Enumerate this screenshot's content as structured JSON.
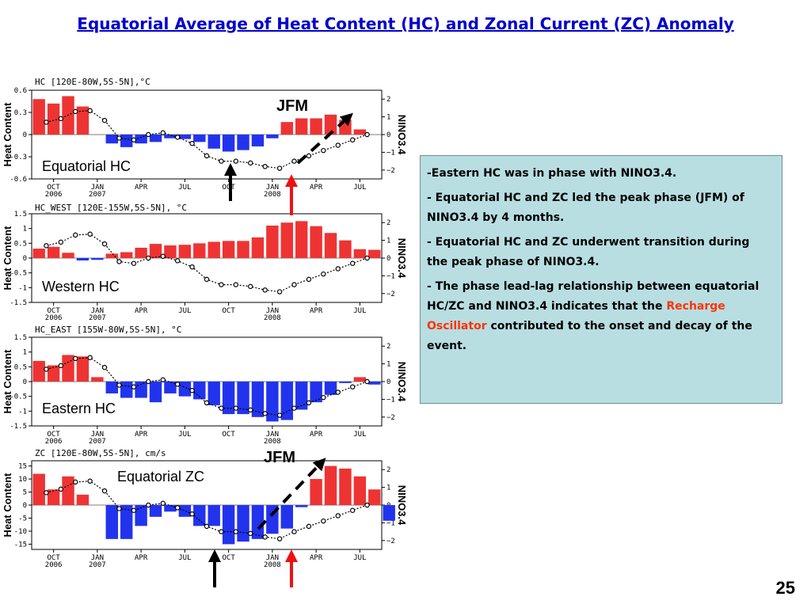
{
  "slide": {
    "title": "Equatorial  Average of Heat Content (HC) and Zonal Current (ZC) Anomaly",
    "page_number": "25"
  },
  "annotations": {
    "jfm_label": "JFM",
    "arrow_colors": {
      "up_arrow": "#000000",
      "peak_arrow": "#ee1111"
    }
  },
  "info_box": {
    "bullets": [
      "-Eastern HC was in phase with NINO3.4.",
      "- Equatorial HC and ZC led the peak phase (JFM) of NINO3.4 by 4 months.",
      "- Equatorial HC and ZC underwent  transition during the peak phase of NINO3.4."
    ],
    "last_bullet": {
      "before": "- The phase lead-lag relationship between equatorial HC/ZC and NINO3.4 indicates that the ",
      "highlight": "Recharge Oscillator",
      "after": " contributed to the onset and decay of the event."
    },
    "background": "#b8dee2",
    "highlight_color": "#ff3300"
  },
  "chart_data": [
    {
      "type": "bar",
      "title": "HC [120E-80W,5S-5N],°C",
      "label": "Equatorial HC",
      "ylabel": "Heat Content",
      "y2label": "NINO3.4",
      "ylim": [
        -0.6,
        0.6
      ],
      "yticks": [
        -0.6,
        -0.3,
        0,
        0.3,
        0.6
      ],
      "y2lim": [
        -2.5,
        2.5
      ],
      "y2ticks": [
        -2,
        -1,
        0,
        1,
        2
      ],
      "x_ticks": [
        "OCT\n2006",
        "JAN\n2007",
        "APR",
        "JUL",
        "OCT",
        "JAN\n2008",
        "APR",
        "JUL"
      ],
      "bars": [
        0.48,
        0.42,
        0.52,
        0.38,
        0.0,
        -0.12,
        -0.17,
        -0.12,
        -0.1,
        -0.05,
        -0.06,
        -0.1,
        -0.19,
        -0.23,
        -0.21,
        -0.16,
        -0.05,
        0.17,
        0.22,
        0.22,
        0.27,
        0.2,
        0.07
      ],
      "line": [
        0.7,
        0.9,
        1.3,
        1.35,
        0.8,
        -0.2,
        -0.3,
        0.0,
        0.1,
        -0.15,
        -0.5,
        -1.2,
        -1.5,
        -1.5,
        -1.6,
        -1.8,
        -1.9,
        -1.5,
        -1.2,
        -0.9,
        -0.6,
        -0.3,
        0.0
      ],
      "colors": {
        "positive": "#ee3333",
        "negative": "#2233ee"
      }
    },
    {
      "type": "bar",
      "title": "HC_WEST [120E-155W,5S-5N], °C",
      "label": "Western  HC",
      "ylabel": "Heat Content",
      "y2label": "NINO3.4",
      "ylim": [
        -1.5,
        1.5
      ],
      "yticks": [
        -1.5,
        -1,
        -0.5,
        0,
        0.5,
        1,
        1.5
      ],
      "y2lim": [
        -2.5,
        2.5
      ],
      "y2ticks": [
        -2,
        -1,
        0,
        1,
        2
      ],
      "x_ticks": [
        "OCT\n2006",
        "JAN\n2007",
        "APR",
        "JUL",
        "OCT",
        "JAN\n2008",
        "APR",
        "JUL"
      ],
      "bars": [
        0.32,
        0.38,
        0.18,
        -0.08,
        -0.06,
        0.15,
        0.2,
        0.35,
        0.48,
        0.43,
        0.45,
        0.5,
        0.55,
        0.58,
        0.58,
        0.7,
        1.1,
        1.2,
        1.25,
        1.08,
        0.85,
        0.6,
        0.3,
        0.28
      ],
      "line": [
        0.7,
        0.9,
        1.3,
        1.35,
        0.8,
        -0.2,
        -0.3,
        0.0,
        0.1,
        -0.15,
        -0.5,
        -1.2,
        -1.5,
        -1.5,
        -1.6,
        -1.8,
        -1.9,
        -1.5,
        -1.2,
        -0.9,
        -0.6,
        -0.3,
        0.0
      ],
      "colors": {
        "positive": "#ee3333",
        "negative": "#2233ee"
      }
    },
    {
      "type": "bar",
      "title": "HC_EAST [155W-80W,5S-5N], °C",
      "label": "Eastern  HC",
      "ylabel": "Heat Content",
      "y2label": "NINO3.4",
      "ylim": [
        -1.5,
        1.5
      ],
      "yticks": [
        -1.5,
        -1,
        -0.5,
        0,
        0.5,
        1,
        1.5
      ],
      "y2lim": [
        -2.5,
        2.5
      ],
      "y2ticks": [
        -2,
        -1,
        0,
        1,
        2
      ],
      "x_ticks": [
        "OCT\n2006",
        "JAN\n2007",
        "APR",
        "JUL",
        "OCT",
        "JAN\n2008",
        "APR",
        "JUL"
      ],
      "bars": [
        0.7,
        0.55,
        0.9,
        0.85,
        0.15,
        -0.4,
        -0.55,
        -0.55,
        -0.7,
        -0.4,
        -0.5,
        -0.6,
        -0.8,
        -1.1,
        -1.1,
        -1.2,
        -1.35,
        -1.3,
        -0.95,
        -0.7,
        -0.45,
        -0.05,
        0.15,
        -0.1
      ],
      "line": [
        0.7,
        0.9,
        1.3,
        1.35,
        0.8,
        -0.2,
        -0.3,
        0.0,
        0.1,
        -0.15,
        -0.5,
        -1.2,
        -1.5,
        -1.5,
        -1.6,
        -1.8,
        -1.9,
        -1.5,
        -1.2,
        -0.9,
        -0.6,
        -0.3,
        0.0
      ],
      "colors": {
        "positive": "#ee3333",
        "negative": "#2233ee"
      }
    },
    {
      "type": "bar",
      "title": "ZC [120E-80W,5S-5N], cm/s",
      "label": "Equatorial ZC",
      "ylabel": "Heat Content",
      "y2label": "NINO3.4",
      "ylim": [
        -17,
        17
      ],
      "yticks": [
        -15,
        -10,
        -5,
        0,
        5,
        10,
        15
      ],
      "y2lim": [
        -2.5,
        2.5
      ],
      "y2ticks": [
        -2,
        -1,
        0,
        1,
        2
      ],
      "x_ticks": [
        "OCT\n2006",
        "JAN\n2007",
        "APR",
        "JUL",
        "OCT",
        "JAN\n2008",
        "APR",
        "JUL"
      ],
      "bars": [
        12,
        6,
        11,
        4,
        0,
        -13,
        -13,
        -8,
        -4.5,
        -2.5,
        -4.5,
        -8,
        -8,
        -15,
        -14,
        -13,
        -11,
        -9,
        -0.8,
        10,
        15,
        14,
        11,
        6,
        -6
      ],
      "line": [
        0.7,
        0.9,
        1.3,
        1.35,
        0.8,
        -0.2,
        -0.3,
        0.0,
        0.1,
        -0.15,
        -0.5,
        -1.2,
        -1.5,
        -1.5,
        -1.6,
        -1.8,
        -1.9,
        -1.5,
        -1.2,
        -0.9,
        -0.6,
        -0.3,
        0.0
      ],
      "colors": {
        "positive": "#ee3333",
        "negative": "#2233ee"
      }
    }
  ]
}
